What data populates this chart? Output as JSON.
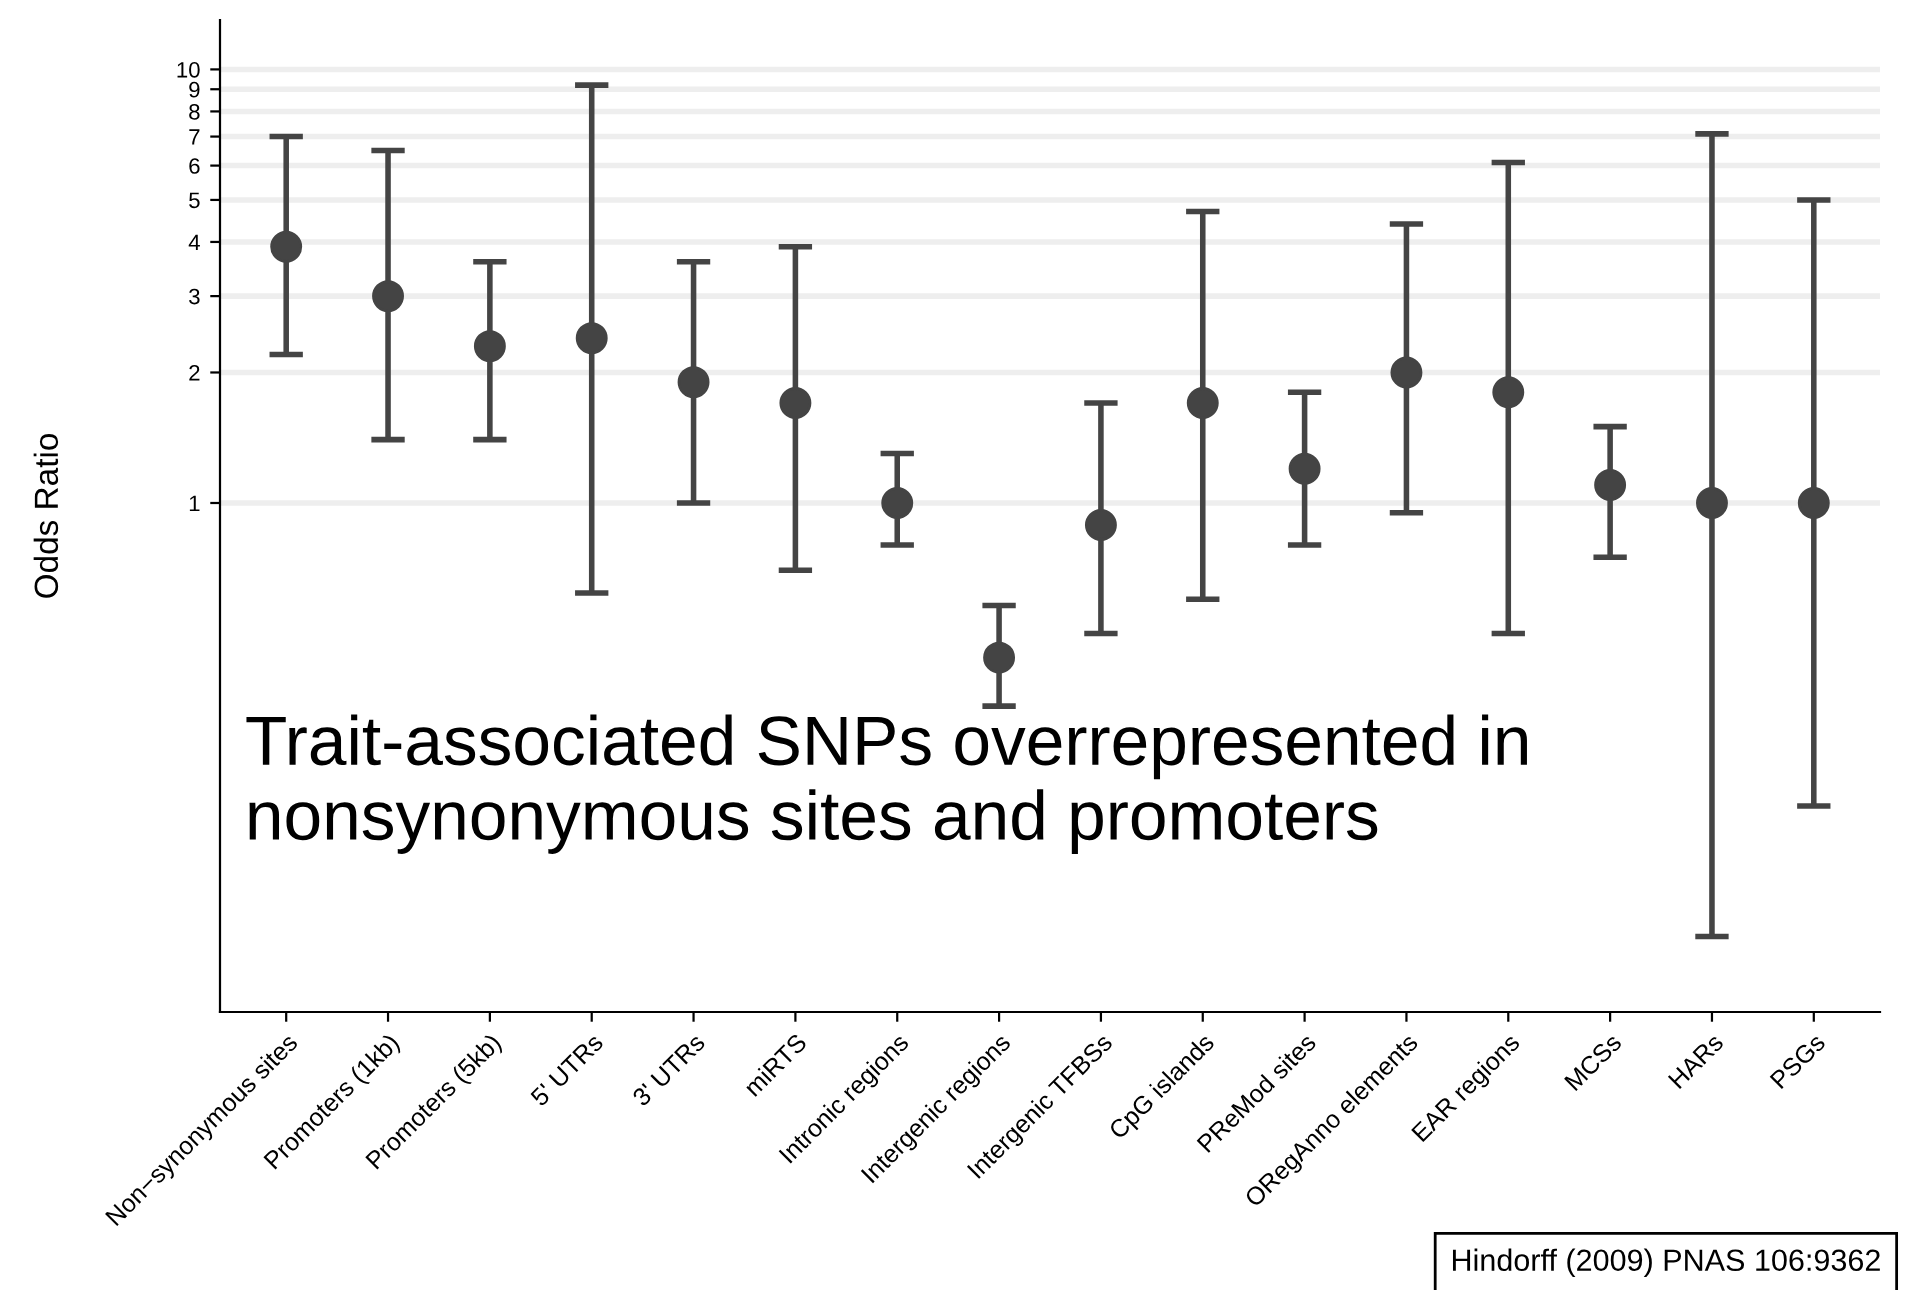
{
  "chart_data": {
    "type": "scatter",
    "ylabel": "Odds Ratio",
    "categories": [
      "Non−synonymous sites",
      "Promoters (1kb)",
      "Promoters (5kb)",
      "5' UTRs",
      "3' UTRs",
      "miRTS",
      "Intronic regions",
      "Intergenic regions",
      "Intergenic TFBSs",
      "CpG islands",
      "PReMod sites",
      "ORegAnno elements",
      "EAR regions",
      "MCSs",
      "HARs",
      "PSGs"
    ],
    "series": [
      {
        "color": "#444444",
        "values": [
          3.9,
          3.0,
          2.3,
          2.4,
          1.9,
          1.7,
          1.0,
          0.44,
          0.89,
          1.7,
          1.2,
          2.0,
          1.8,
          1.1,
          1.0,
          1.0
        ],
        "errors": [
          [
            2.2,
            7.0
          ],
          [
            1.4,
            6.5
          ],
          [
            1.4,
            3.6
          ],
          [
            0.62,
            9.2
          ],
          [
            1.0,
            3.6
          ],
          [
            0.7,
            3.9
          ],
          [
            0.8,
            1.3
          ],
          [
            0.34,
            0.58
          ],
          [
            0.5,
            1.7
          ],
          [
            0.6,
            4.7
          ],
          [
            0.8,
            1.8
          ],
          [
            0.95,
            4.4
          ],
          [
            0.5,
            6.1
          ],
          [
            0.75,
            1.5
          ],
          [
            0.1,
            7.1
          ],
          [
            0.2,
            5.0
          ]
        ]
      }
    ],
    "log": "y",
    "ylim": [
      0.067,
      13
    ],
    "yticks": [
      1,
      2,
      3,
      4,
      5,
      6,
      7,
      8,
      9,
      10
    ],
    "grid": "y",
    "marker": "circle",
    "annotations": [
      "Trait-associated SNPs overrepresented in nonsynonymous sites and promoters",
      "Hindorff (2009) PNAS 106:9362"
    ]
  }
}
